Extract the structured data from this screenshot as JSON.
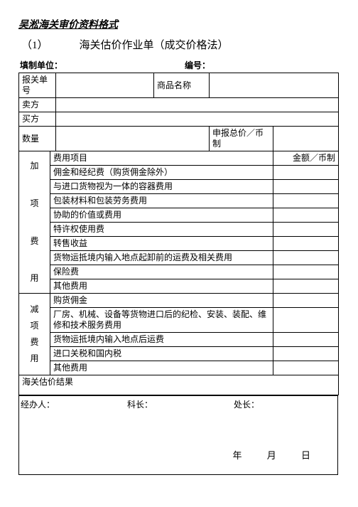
{
  "header": "吴淞海关审价资料格式",
  "title_num": "（1）",
  "title_text": "海关估价作业单（成交价格法）",
  "sub_left": "填制单位：",
  "sub_right": "编号：",
  "labels": {
    "baoguan": "报关单号",
    "shangpin": "商品名称",
    "maifang": "卖方",
    "maifang2": "买方",
    "shuliang": "数量",
    "shenbao": "申报总价／币制",
    "feiyongxm": "费用项目",
    "jine": "金额／币制",
    "feiyong1": "佣金和经纪费（购货佣金除外）",
    "feiyong2": "与进口货物视为一体的容器费用",
    "feiyong3": "包装材料和包装劳务费用",
    "feiyong4": "协助的价值或费用",
    "feiyong5": "特许权使用费",
    "feiyong6": "转售收益",
    "feiyong7": "货物运抵境内输入地点起卸前的运费及相关费用",
    "feiyong8": "保险费",
    "feiyong9": "其他费用",
    "jianA": "购货佣金",
    "jianB": "厂房、机械、设备等货物进口后的纪检、安装、装配、维修和技术服务费用",
    "jianC": "货物运抵境内输入地点后运费",
    "jianD": "进口关税和国内税",
    "jianE": "其他费用",
    "haiguan": "海关估价结果",
    "vlabel_add": "加<br><br>项<br><br>费<br><br>用",
    "vlabel_sub": "减<br>项<br>费<br>用"
  },
  "sig": {
    "a": "经办人：",
    "b": "科长：",
    "c": "处长："
  },
  "date": {
    "y": "年",
    "m": "月",
    "d": "日"
  }
}
